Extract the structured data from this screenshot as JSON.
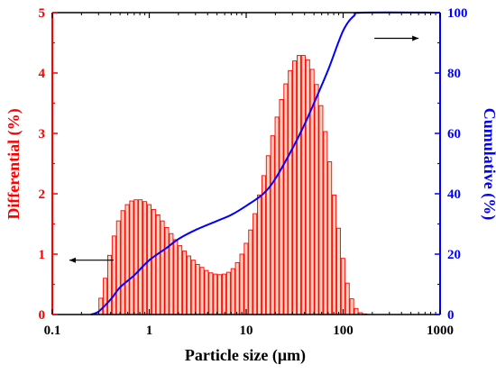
{
  "chart_data": {
    "type": "bar",
    "x_scale": "log",
    "xlabel": "Particle size (μm)",
    "xlim": [
      0.1,
      1000
    ],
    "xticks": [
      "0.1",
      "1",
      "10",
      "100",
      "1000"
    ],
    "y_left": {
      "label": "Differential (%)",
      "lim": [
        0,
        5
      ],
      "ticks": [
        "0",
        "1",
        "2",
        "3",
        "4",
        "5"
      ]
    },
    "y_right": {
      "label": "Cumulative (%)",
      "lim": [
        0,
        100
      ],
      "ticks": [
        "0",
        "20",
        "40",
        "60",
        "80",
        "100"
      ]
    },
    "grid": false,
    "colors": {
      "differential": "#ff0000",
      "bar_fill": "#ff7a45",
      "cumulative": "#0000ff",
      "left_axis": "#ff0000",
      "right_axis": "#0000ff",
      "frame": "#000000"
    },
    "series": [
      {
        "type": "bar",
        "axis": "left",
        "bins_per_decade": 22,
        "x_start": 0.3,
        "x": [
          0.3,
          0.3331,
          0.3698,
          0.4106,
          0.4559,
          0.5062,
          0.562,
          0.6239,
          0.6927,
          0.7691,
          0.8539,
          0.948,
          1.0526,
          1.1687,
          1.2975,
          1.4406,
          1.5995,
          1.7759,
          1.9717,
          2.1891,
          2.4305,
          2.6985,
          2.9961,
          3.3265,
          3.6933,
          4.1006,
          4.5527,
          5.0548,
          5.6122,
          6.2311,
          6.9182,
          7.6811,
          8.5281,
          9.4685,
          10.5127,
          11.672,
          12.9591,
          14.3882,
          15.9748,
          17.7365,
          19.6924,
          21.8639,
          24.275,
          26.9519,
          29.9241,
          33.2239,
          36.8877,
          40.9555,
          45.4719,
          50.4863,
          56.0536,
          62.2349,
          69.0979,
          76.7176,
          85.1777,
          94.5707,
          105.0,
          116.579,
          129.435,
          143.709,
          159.556,
          177.151
        ],
        "values": [
          0.27,
          0.6,
          0.98,
          1.3,
          1.55,
          1.72,
          1.82,
          1.88,
          1.9,
          1.9,
          1.87,
          1.82,
          1.74,
          1.65,
          1.55,
          1.44,
          1.34,
          1.24,
          1.14,
          1.05,
          0.97,
          0.9,
          0.83,
          0.78,
          0.73,
          0.69,
          0.67,
          0.66,
          0.67,
          0.7,
          0.76,
          0.86,
          1.0,
          1.18,
          1.4,
          1.67,
          1.98,
          2.3,
          2.63,
          2.96,
          3.27,
          3.56,
          3.82,
          4.04,
          4.2,
          4.29,
          4.29,
          4.22,
          4.06,
          3.81,
          3.46,
          3.03,
          2.53,
          1.98,
          1.43,
          0.93,
          0.52,
          0.26,
          0.1,
          0.03,
          0.01,
          0.0
        ]
      },
      {
        "type": "line",
        "axis": "right",
        "x": [
          0.25,
          0.3,
          0.4,
          0.5,
          0.7,
          1.0,
          1.5,
          2.0,
          3.0,
          5.0,
          7.0,
          10.0,
          15.0,
          20.0,
          30.0,
          40.0,
          50.0,
          70.0,
          100.0,
          130.0,
          160.0,
          1000.0
        ],
        "values": [
          0,
          1,
          5,
          9,
          13,
          18,
          22,
          25,
          28,
          31,
          33,
          36,
          40,
          45,
          55,
          63,
          70,
          81,
          94,
          99,
          100,
          100
        ]
      }
    ],
    "annotations": [
      {
        "text": "←",
        "meaning": "arrow pointing to left axis (differential)"
      },
      {
        "text": "→",
        "meaning": "arrow pointing to right axis (cumulative)"
      }
    ]
  }
}
